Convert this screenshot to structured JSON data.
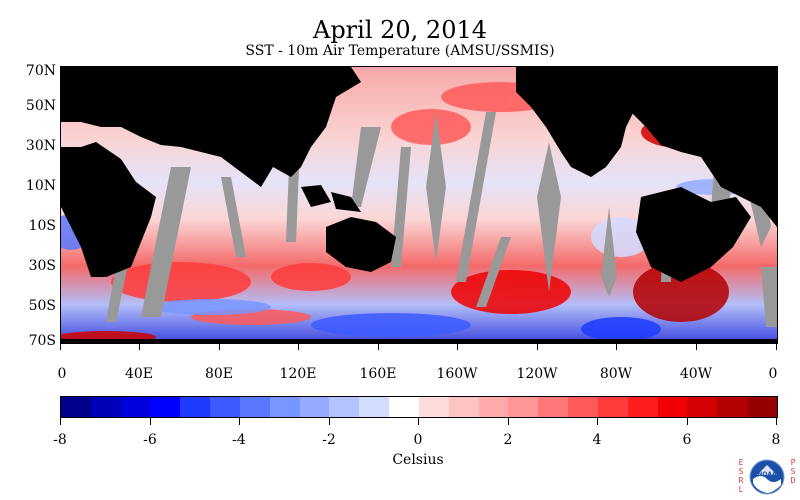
{
  "header": {
    "title": "April 20, 2014",
    "subtitle": "SST - 10m Air Temperature (AMSU/SSMIS)"
  },
  "map": {
    "lat_labels": [
      "70N",
      "50N",
      "30N",
      "10N",
      "10S",
      "30S",
      "50S",
      "70S"
    ],
    "lon_labels": [
      "0",
      "40E",
      "80E",
      "120E",
      "160E",
      "160W",
      "120W",
      "80W",
      "40W",
      "0"
    ],
    "colors": {
      "land": "#000000",
      "missing": "#999999",
      "ocean_base": "#f4c4c4"
    }
  },
  "colorbar": {
    "tick_labels": [
      "-8",
      "-6",
      "-4",
      "-2",
      "0",
      "2",
      "4",
      "6",
      "8"
    ],
    "unit": "Celsius",
    "colors": [
      "#00008c",
      "#0000b8",
      "#0000dc",
      "#0000ff",
      "#1e3cff",
      "#3c5aff",
      "#5a78ff",
      "#7896ff",
      "#96aaff",
      "#b4c3ff",
      "#d2dcff",
      "#ffffff",
      "#ffdcdc",
      "#ffc3c3",
      "#ffaaaa",
      "#ff9696",
      "#ff7878",
      "#ff5a5a",
      "#ff3c3c",
      "#ff1e1e",
      "#f00000",
      "#d20000",
      "#b40000",
      "#960000"
    ]
  },
  "logo": {
    "left_text": "ESRL",
    "right_text": "PSD",
    "name": "noaa-logo-icon"
  }
}
